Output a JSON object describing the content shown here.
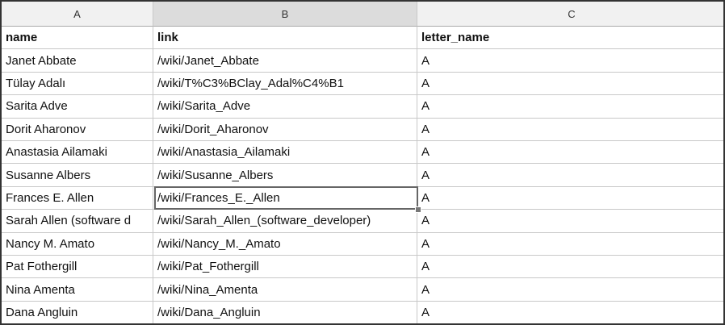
{
  "column_headers": [
    "A",
    "B",
    "C"
  ],
  "rows": [
    [
      "name",
      "link",
      "letter_name"
    ],
    [
      "Janet Abbate",
      "/wiki/Janet_Abbate",
      "A"
    ],
    [
      "Tülay Adalı",
      "/wiki/T%C3%BClay_Adal%C4%B1",
      "A"
    ],
    [
      "Sarita Adve",
      "/wiki/Sarita_Adve",
      "A"
    ],
    [
      "Dorit Aharonov",
      "/wiki/Dorit_Aharonov",
      "A"
    ],
    [
      "Anastasia Ailamaki",
      "/wiki/Anastasia_Ailamaki",
      "A"
    ],
    [
      "Susanne Albers",
      "/wiki/Susanne_Albers",
      "A"
    ],
    [
      "Frances E. Allen",
      "/wiki/Frances_E._Allen",
      "A"
    ],
    [
      "Sarah Allen (software d",
      "/wiki/Sarah_Allen_(software_developer)",
      "A"
    ],
    [
      "Nancy M. Amato",
      "/wiki/Nancy_M._Amato",
      "A"
    ],
    [
      "Pat Fothergill",
      "/wiki/Pat_Fothergill",
      "A"
    ],
    [
      "Nina Amenta",
      "/wiki/Nina_Amenta",
      "A"
    ],
    [
      "Dana Angluin",
      "/wiki/Dana_Angluin",
      "A"
    ]
  ]
}
